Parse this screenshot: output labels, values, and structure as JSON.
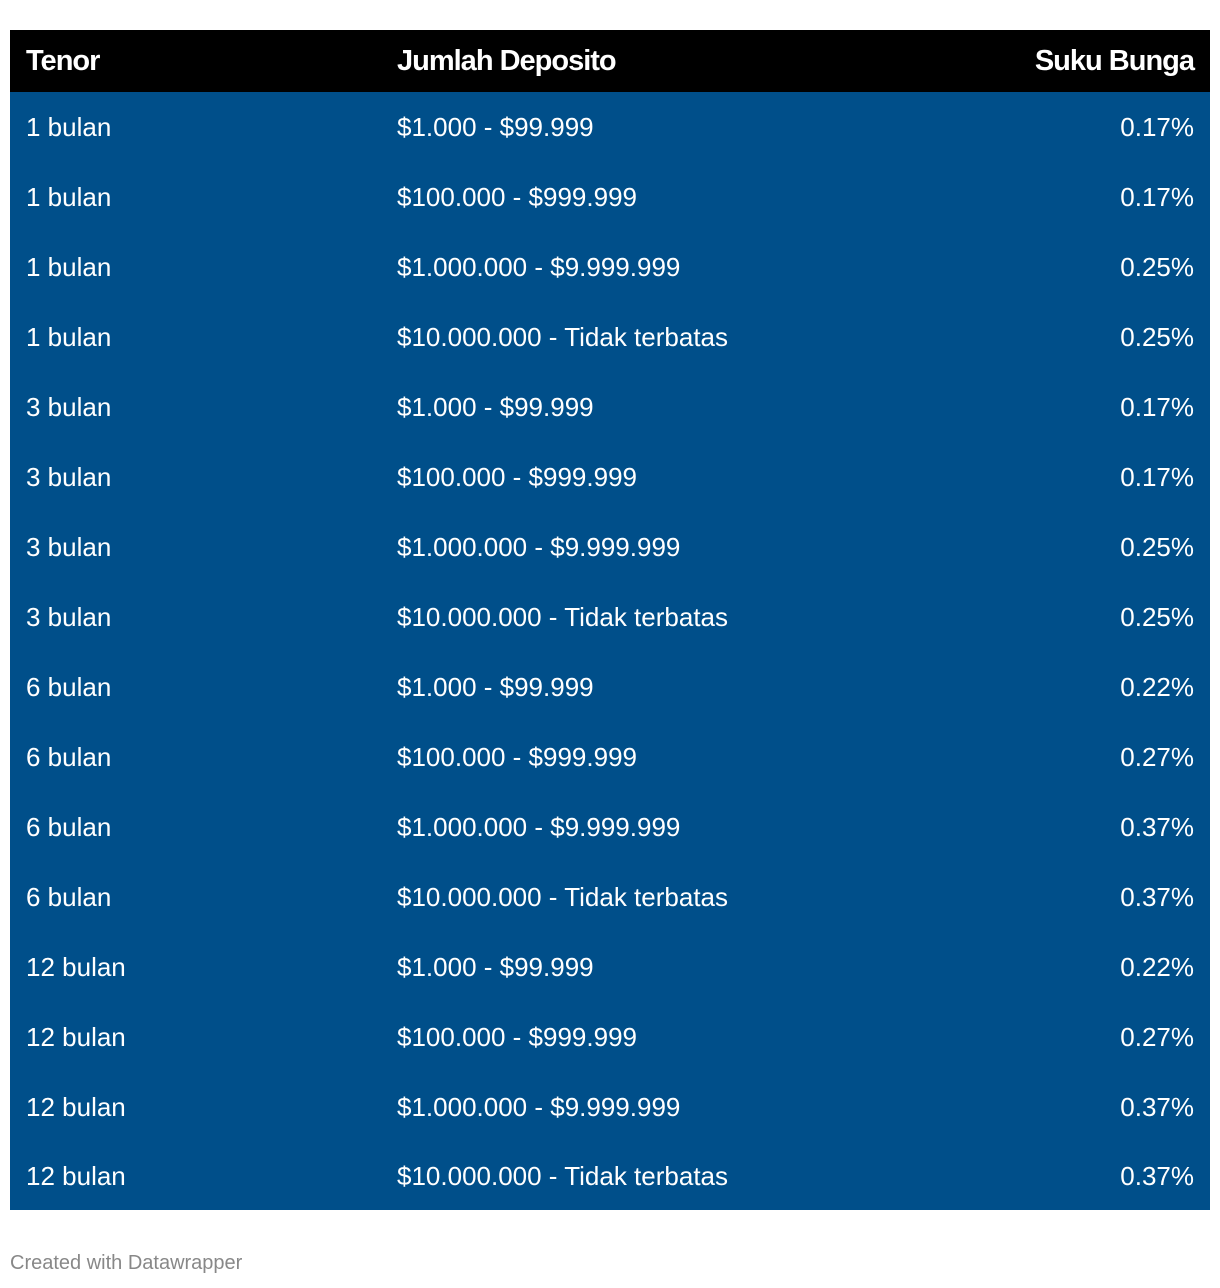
{
  "chart_data": {
    "type": "table",
    "columns": [
      "Tenor",
      "Jumlah Deposito",
      "Suku Bunga"
    ],
    "rows": [
      [
        "1 bulan",
        "$1.000 - $99.999",
        "0.17%"
      ],
      [
        "1 bulan",
        "$100.000 - $999.999",
        "0.17%"
      ],
      [
        "1 bulan",
        "$1.000.000 - $9.999.999",
        "0.25%"
      ],
      [
        "1 bulan",
        "$10.000.000 - Tidak terbatas",
        "0.25%"
      ],
      [
        "3 bulan",
        "$1.000 - $99.999",
        "0.17%"
      ],
      [
        "3 bulan",
        "$100.000 - $999.999",
        "0.17%"
      ],
      [
        "3 bulan",
        "$1.000.000 - $9.999.999",
        "0.25%"
      ],
      [
        "3 bulan",
        "$10.000.000 - Tidak terbatas",
        "0.25%"
      ],
      [
        "6 bulan",
        "$1.000 - $99.999",
        "0.22%"
      ],
      [
        "6 bulan",
        "$100.000 - $999.999",
        "0.27%"
      ],
      [
        "6 bulan",
        "$1.000.000 - $9.999.999",
        "0.37%"
      ],
      [
        "6 bulan",
        "$10.000.000 - Tidak terbatas",
        "0.37%"
      ],
      [
        "12 bulan",
        "$1.000 - $99.999",
        "0.22%"
      ],
      [
        "12 bulan",
        "$100.000 - $999.999",
        "0.27%"
      ],
      [
        "12 bulan",
        "$1.000.000 - $9.999.999",
        "0.37%"
      ],
      [
        "12 bulan",
        "$10.000.000 - Tidak terbatas",
        "0.37%"
      ]
    ],
    "colors": {
      "header_background": "#000000",
      "body_background": "#004f8a",
      "text": "#ffffff"
    }
  },
  "footer": {
    "credit": "Created with Datawrapper"
  }
}
